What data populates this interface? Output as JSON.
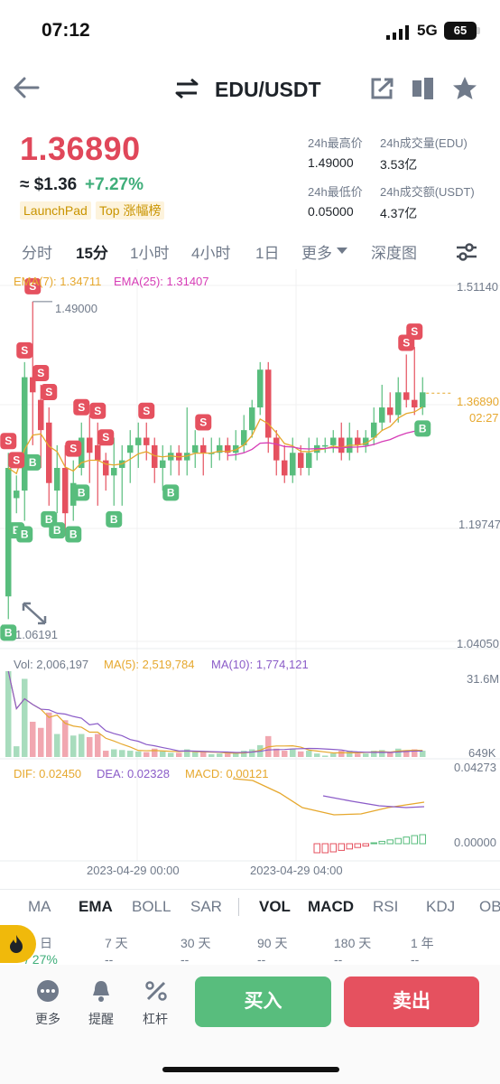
{
  "status_bar": {
    "time": "07:12",
    "network": "5G",
    "battery": "65"
  },
  "header": {
    "pair": "EDU/USDT"
  },
  "price": {
    "last": "1.36890",
    "approx_usd": "≈ $1.36",
    "change": "+7.27%",
    "tags": [
      "LaunchPad",
      "Top 涨幅榜"
    ]
  },
  "stats": {
    "high_label": "24h最高价",
    "high_value": "1.49000",
    "vol_label": "24h成交量(EDU)",
    "vol_value": "3.53亿",
    "low_label": "24h最低价",
    "low_value": "0.05000",
    "turnover_label": "24h成交额(USDT)",
    "turnover_value": "4.37亿"
  },
  "interval_tabs": [
    "分时",
    "15分",
    "1小时",
    "4小时",
    "1日",
    "更多",
    "深度图"
  ],
  "active_interval": "15分",
  "indicators": {
    "ema7": "EMA(7): 1.34711",
    "ema25": "EMA(25): 1.31407",
    "vol": "Vol: 2,006,197",
    "ma5": "MA(5): 2,519,784",
    "ma10": "MA(10): 1,774,121",
    "dif": "DIF: 0.02450",
    "dea": "DEA: 0.02328",
    "macd": "MACD: 0.00121"
  },
  "price_axis": {
    "top": "1.51140",
    "mid": "1.19747",
    "bottom": "1.04050",
    "current": "1.36890",
    "countdown": "02:27",
    "high_marker": "1.49000",
    "low_marker": "1.06191"
  },
  "vol_axis": {
    "top": "31.6M",
    "bottom": "649K"
  },
  "macd_axis": {
    "top": "0.04273",
    "bottom": "0.00000"
  },
  "time_axis": [
    "2023-04-29 00:00",
    "2023-04-29 04:00"
  ],
  "indicator_tabs": [
    "MA",
    "EMA",
    "BOLL",
    "SAR",
    "VOL",
    "MACD",
    "RSI",
    "KDJ",
    "OB"
  ],
  "active_main_indicator": "EMA",
  "active_sub_indicators": [
    "VOL",
    "MACD"
  ],
  "performance": [
    {
      "label": "日",
      "value": "/ 27%"
    },
    {
      "label": "7 天",
      "value": "--"
    },
    {
      "label": "30 天",
      "value": "--"
    },
    {
      "label": "90 天",
      "value": "--"
    },
    {
      "label": "180 天",
      "value": "--"
    },
    {
      "label": "1 年",
      "value": "--"
    }
  ],
  "bottom_actions": {
    "more": "更多",
    "alert": "提醒",
    "leverage": "杠杆",
    "buy": "买入",
    "sell": "卖出"
  },
  "colors": {
    "up": "#58bd7d",
    "down": "#e5515f",
    "ema7": "#e6a82e",
    "ema25": "#d63cb6",
    "accent": "#f0b90b"
  },
  "chart_data": {
    "type": "candlestick",
    "interval": "15m",
    "ylim": [
      1.0405,
      1.5114
    ],
    "candles": [
      {
        "o": 1.1,
        "c": 1.27,
        "h": 1.29,
        "l": 1.07
      },
      {
        "o": 1.23,
        "c": 1.24,
        "h": 1.26,
        "l": 1.21
      },
      {
        "o": 1.24,
        "c": 1.39,
        "h": 1.41,
        "l": 1.2
      },
      {
        "o": 1.39,
        "c": 1.37,
        "h": 1.49,
        "l": 1.3
      },
      {
        "o": 1.36,
        "c": 1.32,
        "h": 1.38,
        "l": 1.27
      },
      {
        "o": 1.33,
        "c": 1.25,
        "h": 1.35,
        "l": 1.22
      },
      {
        "o": 1.24,
        "c": 1.27,
        "h": 1.3,
        "l": 1.21
      },
      {
        "o": 1.27,
        "c": 1.21,
        "h": 1.3,
        "l": 1.18
      },
      {
        "o": 1.22,
        "c": 1.25,
        "h": 1.28,
        "l": 1.2
      },
      {
        "o": 1.27,
        "c": 1.31,
        "h": 1.33,
        "l": 1.26
      },
      {
        "o": 1.31,
        "c": 1.29,
        "h": 1.34,
        "l": 1.25
      },
      {
        "o": 1.3,
        "c": 1.28,
        "h": 1.33,
        "l": 1.22
      },
      {
        "o": 1.28,
        "c": 1.26,
        "h": 1.29,
        "l": 1.24
      },
      {
        "o": 1.26,
        "c": 1.27,
        "h": 1.31,
        "l": 1.22
      },
      {
        "o": 1.27,
        "c": 1.28,
        "h": 1.3,
        "l": 1.22
      },
      {
        "o": 1.29,
        "c": 1.3,
        "h": 1.32,
        "l": 1.25
      },
      {
        "o": 1.3,
        "c": 1.31,
        "h": 1.33,
        "l": 1.27
      },
      {
        "o": 1.31,
        "c": 1.3,
        "h": 1.33,
        "l": 1.28
      },
      {
        "o": 1.3,
        "c": 1.27,
        "h": 1.31,
        "l": 1.25
      },
      {
        "o": 1.27,
        "c": 1.28,
        "h": 1.3,
        "l": 1.24
      },
      {
        "o": 1.28,
        "c": 1.29,
        "h": 1.3,
        "l": 1.26
      },
      {
        "o": 1.29,
        "c": 1.28,
        "h": 1.3,
        "l": 1.26
      },
      {
        "o": 1.28,
        "c": 1.29,
        "h": 1.35,
        "l": 1.26
      },
      {
        "o": 1.29,
        "c": 1.3,
        "h": 1.32,
        "l": 1.27
      },
      {
        "o": 1.3,
        "c": 1.29,
        "h": 1.31,
        "l": 1.26
      },
      {
        "o": 1.29,
        "c": 1.29,
        "h": 1.31,
        "l": 1.27
      },
      {
        "o": 1.29,
        "c": 1.3,
        "h": 1.31,
        "l": 1.28
      },
      {
        "o": 1.3,
        "c": 1.29,
        "h": 1.31,
        "l": 1.28
      },
      {
        "o": 1.29,
        "c": 1.3,
        "h": 1.32,
        "l": 1.28
      },
      {
        "o": 1.3,
        "c": 1.32,
        "h": 1.34,
        "l": 1.29
      },
      {
        "o": 1.32,
        "c": 1.35,
        "h": 1.36,
        "l": 1.31
      },
      {
        "o": 1.35,
        "c": 1.4,
        "h": 1.41,
        "l": 1.34
      },
      {
        "o": 1.4,
        "c": 1.31,
        "h": 1.41,
        "l": 1.29
      },
      {
        "o": 1.31,
        "c": 1.28,
        "h": 1.32,
        "l": 1.26
      },
      {
        "o": 1.28,
        "c": 1.26,
        "h": 1.3,
        "l": 1.25
      },
      {
        "o": 1.26,
        "c": 1.29,
        "h": 1.31,
        "l": 1.25
      },
      {
        "o": 1.29,
        "c": 1.27,
        "h": 1.3,
        "l": 1.26
      },
      {
        "o": 1.27,
        "c": 1.29,
        "h": 1.31,
        "l": 1.26
      },
      {
        "o": 1.29,
        "c": 1.3,
        "h": 1.31,
        "l": 1.28
      },
      {
        "o": 1.3,
        "c": 1.3,
        "h": 1.31,
        "l": 1.29
      },
      {
        "o": 1.3,
        "c": 1.31,
        "h": 1.32,
        "l": 1.29
      },
      {
        "o": 1.31,
        "c": 1.29,
        "h": 1.33,
        "l": 1.28
      },
      {
        "o": 1.29,
        "c": 1.31,
        "h": 1.33,
        "l": 1.28
      },
      {
        "o": 1.31,
        "c": 1.3,
        "h": 1.32,
        "l": 1.29
      },
      {
        "o": 1.3,
        "c": 1.31,
        "h": 1.32,
        "l": 1.29
      },
      {
        "o": 1.31,
        "c": 1.33,
        "h": 1.35,
        "l": 1.3
      },
      {
        "o": 1.33,
        "c": 1.35,
        "h": 1.38,
        "l": 1.32
      },
      {
        "o": 1.35,
        "c": 1.34,
        "h": 1.37,
        "l": 1.33
      },
      {
        "o": 1.34,
        "c": 1.37,
        "h": 1.39,
        "l": 1.33
      },
      {
        "o": 1.37,
        "c": 1.36,
        "h": 1.42,
        "l": 1.35
      },
      {
        "o": 1.36,
        "c": 1.35,
        "h": 1.43,
        "l": 1.34
      },
      {
        "o": 1.35,
        "c": 1.37,
        "h": 1.39,
        "l": 1.34
      }
    ],
    "volume_ylim": [
      649000,
      31600000
    ]
  }
}
